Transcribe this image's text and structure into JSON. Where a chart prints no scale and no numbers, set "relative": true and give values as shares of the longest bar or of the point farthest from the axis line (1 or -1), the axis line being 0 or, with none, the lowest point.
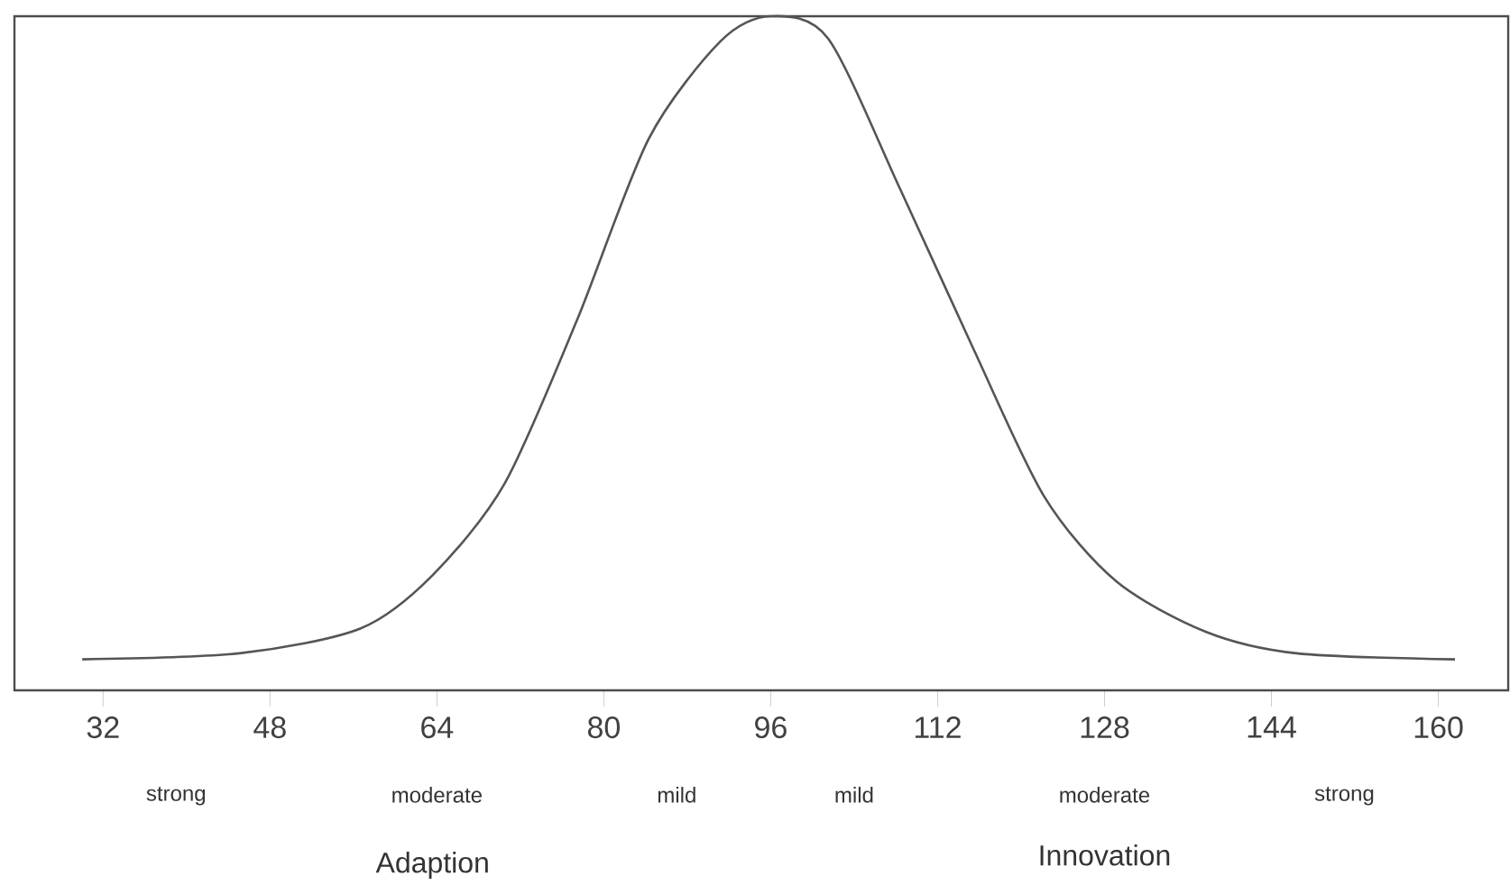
{
  "chart_data": {
    "type": "line",
    "relative": true,
    "color": "#555555",
    "xlim": [
      23.5,
      166.7
    ],
    "xticks": [
      32,
      48,
      64,
      80,
      96,
      112,
      128,
      144,
      160
    ],
    "grid": false,
    "marker": "none",
    "line_style": "solid",
    "annotations": [
      "strong",
      "moderate",
      "mild",
      "mild",
      "moderate",
      "strong",
      "Adaption",
      "Innovation"
    ],
    "x": [
      30,
      45.1,
      56.7,
      63.6,
      70.5,
      77.4,
      84.3,
      91.2,
      96,
      101.5,
      108.4,
      115.3,
      122.2,
      129.1,
      137.7,
      146.4,
      161.6
    ],
    "values": [
      0.046,
      0.055,
      0.092,
      0.171,
      0.307,
      0.548,
      0.818,
      0.963,
      1.0,
      0.967,
      0.744,
      0.511,
      0.288,
      0.162,
      0.087,
      0.055,
      0.046
    ]
  }
}
